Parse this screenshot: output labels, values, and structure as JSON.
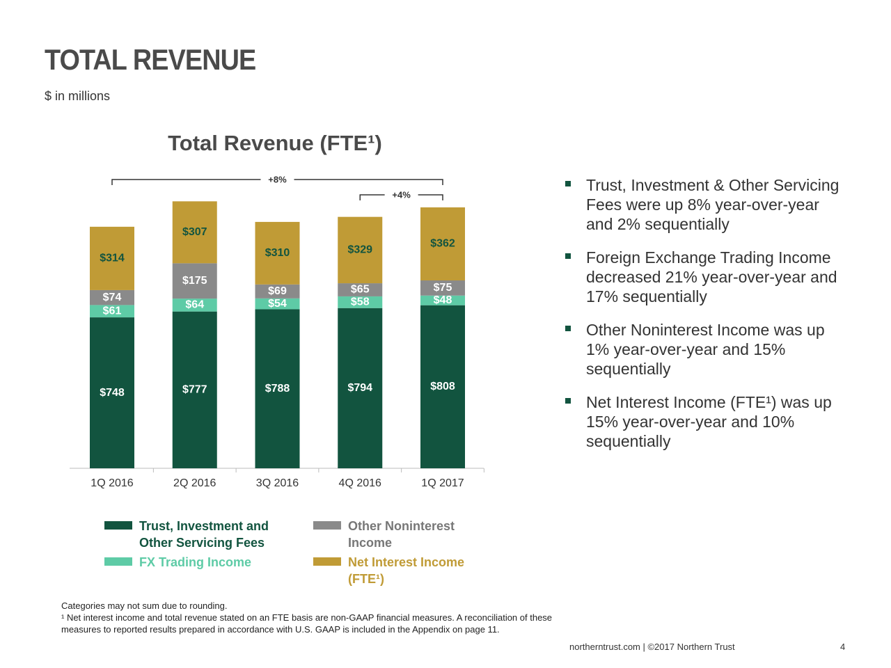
{
  "header": {
    "title": "TOTAL REVENUE",
    "subtitle": "$ in millions"
  },
  "chart_data": {
    "type": "stacked_bar",
    "title": "Total Revenue (FTE¹)",
    "categories": [
      "1Q 2016",
      "2Q 2016",
      "3Q 2016",
      "4Q 2016",
      "1Q 2017"
    ],
    "series": [
      {
        "name": "Trust, Investment and Other Servicing Fees",
        "color": "#12543f",
        "label_color": "#ffffff",
        "values": [
          748,
          777,
          788,
          794,
          808
        ],
        "value_labels": [
          "$748",
          "$777",
          "$788",
          "$794",
          "$808"
        ]
      },
      {
        "name": "FX Trading Income",
        "color": "#5ecba6",
        "label_color": "#ffffff",
        "values": [
          61,
          64,
          54,
          58,
          48
        ],
        "value_labels": [
          "$61",
          "$64",
          "$54",
          "$58",
          "$48"
        ]
      },
      {
        "name": "Other Noninterest Income",
        "color": "#8a8a8a",
        "label_color": "#ffffff",
        "values": [
          74,
          175,
          69,
          65,
          75
        ],
        "value_labels": [
          "$74",
          "$175",
          "$69",
          "$65",
          "$75"
        ]
      },
      {
        "name": "Net Interest Income (FTE¹)",
        "color": "#c09b36",
        "label_color": "#12543f",
        "values": [
          314,
          307,
          310,
          329,
          362
        ],
        "value_labels": [
          "$314",
          "$307",
          "$310",
          "$329",
          "$362"
        ]
      }
    ],
    "annotations": [
      "+8%",
      "+4%"
    ]
  },
  "bullets": [
    "Trust, Investment & Other Servicing Fees were up 8% year-over-year and 2% sequentially",
    "Foreign Exchange Trading Income decreased 21% year-over-year and 17% sequentially",
    "Other Noninterest Income was up 1% year-over-year and 15% sequentially",
    "Net Interest Income (FTE¹) was up 15% year-over-year and 10% sequentially"
  ],
  "footnotes": [
    "Categories may not sum due to rounding.",
    "¹ Net interest income and total revenue stated on an FTE basis are non-GAAP financial measures. A reconciliation of these measures to reported results prepared in accordance with U.S. GAAP is included in the Appendix on page 11."
  ],
  "footer": {
    "source": "northerntrust.com | ©2017 Northern Trust",
    "page": "4"
  }
}
